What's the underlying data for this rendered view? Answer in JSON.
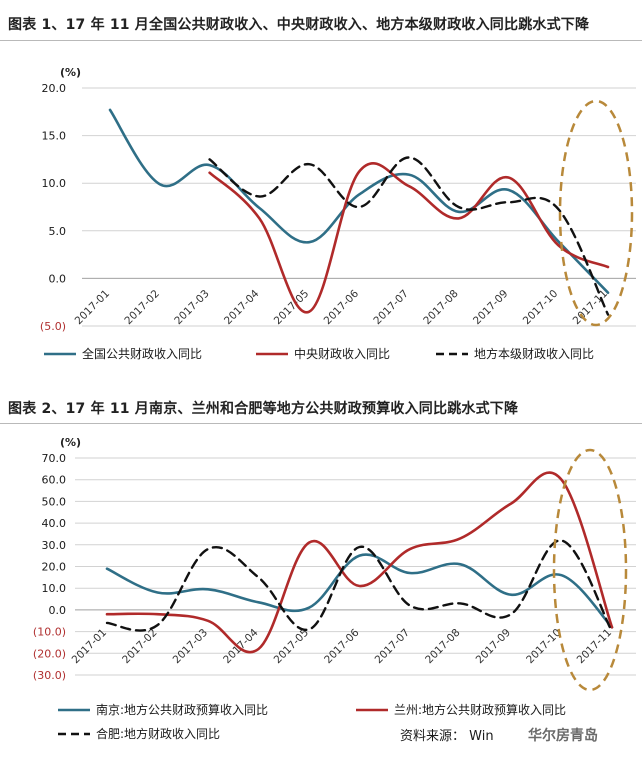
{
  "chart_data": [
    {
      "type": "line",
      "title": "图表 1、17 年 11 月全国公共财政收入、中央财政收入、地方本级财政收入同比跳水式下降",
      "unit": "(%)",
      "ylim": [
        -5,
        20
      ],
      "yticks": [
        -5,
        0,
        5,
        10,
        15,
        20
      ],
      "ytick_labels": [
        "(5.0)",
        "0.0",
        "5.0",
        "10.0",
        "15.0",
        "20.0"
      ],
      "x": [
        "2017-01",
        "2017-02",
        "2017-03",
        "2017-04",
        "2017-05",
        "2017-06",
        "2017-07",
        "2017-08",
        "2017-09",
        "2017-10",
        "2017-11"
      ],
      "grid": true,
      "legend_position": "bottom",
      "series": [
        {
          "name": "全国公共财政收入同比",
          "color": "#2f6f87",
          "dash": false,
          "values": [
            17.7,
            9.9,
            11.9,
            7.4,
            3.8,
            8.8,
            10.9,
            7.0,
            9.3,
            3.9,
            -1.5
          ]
        },
        {
          "name": "中央财政收入同比",
          "color": "#b02a2a",
          "dash": false,
          "values": [
            null,
            null,
            11.1,
            6.3,
            -3.5,
            11.2,
            9.7,
            6.3,
            10.6,
            3.5,
            1.2
          ]
        },
        {
          "name": "地方本级财政收入同比",
          "color": "#111111",
          "dash": true,
          "values": [
            null,
            null,
            12.5,
            8.6,
            12.0,
            7.5,
            12.7,
            7.5,
            8.0,
            7.3,
            -3.8
          ]
        }
      ]
    },
    {
      "type": "line",
      "title": "图表 2、17 年 11 月南京、兰州和合肥等地方公共财政预算收入同比跳水式下降",
      "unit": "(%)",
      "ylim": [
        -30,
        70
      ],
      "yticks": [
        -30,
        -20,
        -10,
        0,
        10,
        20,
        30,
        40,
        50,
        60,
        70
      ],
      "ytick_labels": [
        "(30.0)",
        "(20.0)",
        "(10.0)",
        "0.0",
        "10.0",
        "20.0",
        "30.0",
        "40.0",
        "50.0",
        "60.0",
        "70.0"
      ],
      "x": [
        "2017-01",
        "2017-02",
        "2017-03",
        "2017-04",
        "2017-05",
        "2017-06",
        "2017-07",
        "2017-08",
        "2017-09",
        "2017-10",
        "2017-11"
      ],
      "grid": true,
      "legend_position": "bottom",
      "series": [
        {
          "name": "南京:地方公共财政预算收入同比",
          "color": "#2f6f87",
          "dash": false,
          "values": [
            19.0,
            8.0,
            9.5,
            3.5,
            1.0,
            25.0,
            17.0,
            21.0,
            7.0,
            16.0,
            -8.0
          ]
        },
        {
          "name": "兰州:地方公共财政预算收入同比",
          "color": "#b02a2a",
          "dash": false,
          "values": [
            -2.0,
            -2.0,
            -5.0,
            -18.0,
            31.0,
            11.0,
            28.0,
            33.0,
            49.0,
            60.0,
            -8.0
          ]
        },
        {
          "name": "合肥:地方财政收入同比",
          "color": "#111111",
          "dash": true,
          "values": [
            -6.0,
            -7.0,
            28.0,
            15.0,
            -9.0,
            29.0,
            2.0,
            3.0,
            -2.0,
            32.0,
            -10.0
          ]
        }
      ]
    }
  ],
  "source_label": "资料来源：",
  "source_text": "Win",
  "watermark": "华尔房青岛"
}
